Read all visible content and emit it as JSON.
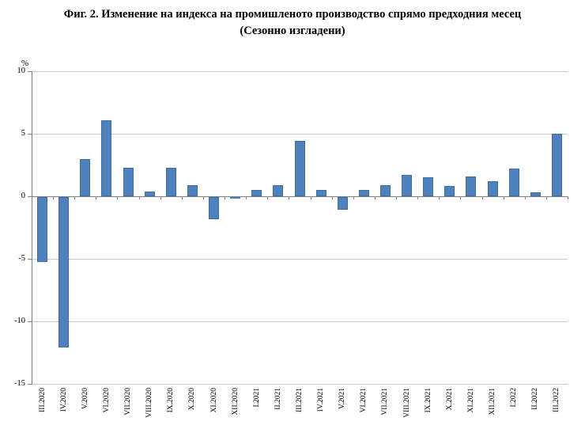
{
  "chart_data": {
    "type": "bar",
    "title": "Фиг. 2. Изменение на индекса на промишленото производство спрямо предходния месец",
    "subtitle": "(Сезонно изгладени)",
    "unit_label": "%",
    "categories": [
      "III.2020",
      "IV.2020",
      "V.2020",
      "VI.2020",
      "VII.2020",
      "VIII.2020",
      "IX.2020",
      "X.2020",
      "XI.2020",
      "XII.2020",
      "I.2021",
      "II.2021",
      "III.2021",
      "IV.2021",
      "V.2021",
      "VI.2021",
      "VII.2021",
      "VIII.2021",
      "IX.2021",
      "X.2021",
      "XI.2021",
      "XII.2021",
      "I.2022",
      "II.2022",
      "III.2022"
    ],
    "values": [
      -5.2,
      -12.0,
      3.0,
      6.1,
      2.3,
      0.4,
      2.3,
      0.9,
      -1.8,
      -0.1,
      0.5,
      0.9,
      4.4,
      0.5,
      -1.0,
      0.5,
      0.9,
      1.7,
      1.5,
      0.8,
      1.6,
      1.2,
      2.2,
      0.3,
      5.0
    ],
    "ylim": [
      -15,
      10
    ],
    "yticks": [
      10,
      5,
      0,
      -5,
      -10,
      -15
    ],
    "ytick_labels": [
      "10",
      "5",
      "0",
      "-5",
      "-10",
      "-15"
    ],
    "grid": true,
    "legend": "none",
    "bar_color": "#4f81bd",
    "bar_border_color": "#3c6e9f",
    "gridline_color": "#c9c9c9",
    "axis_color": "#808080"
  }
}
